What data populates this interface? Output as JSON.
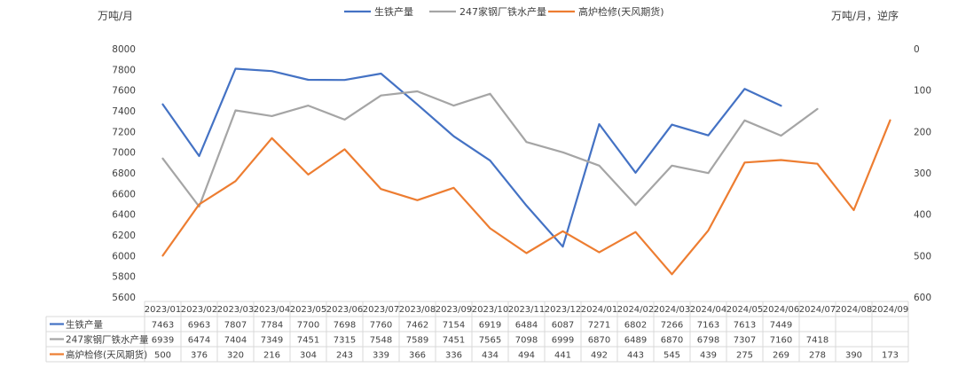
{
  "chart_data": {
    "type": "line",
    "left_axis_unit": "万吨/月",
    "right_axis_unit": "万吨/月，逆序",
    "left_ylim": [
      5600,
      8000
    ],
    "left_ticks": [
      5600,
      5800,
      6000,
      6200,
      6400,
      6600,
      6800,
      7000,
      7200,
      7400,
      7600,
      7800,
      8000
    ],
    "right_ylim": [
      0,
      600
    ],
    "right_reversed": true,
    "right_ticks": [
      0,
      100,
      200,
      300,
      400,
      500,
      600
    ],
    "grid": false,
    "legend_position": "top",
    "categories": [
      "2023/01",
      "2023/02",
      "2023/03",
      "2023/04",
      "2023/05",
      "2023/06",
      "2023/07",
      "2023/08",
      "2023/09",
      "2023/10",
      "2023/11",
      "2023/12",
      "2024/01",
      "2024/02",
      "2024/03",
      "2024/04",
      "2024/05",
      "2024/06",
      "2024/07",
      "2024/08",
      "2024/09"
    ],
    "series": [
      {
        "name": "生铁产量",
        "axis": "left",
        "color": "#4472C4",
        "values": [
          7463,
          6963,
          7807,
          7784,
          7700,
          7698,
          7760,
          7462,
          7154,
          6919,
          6484,
          6087,
          7271,
          6802,
          7266,
          7163,
          7613,
          7449,
          null,
          null,
          null
        ]
      },
      {
        "name": "247家钢厂铁水产量",
        "axis": "left",
        "color": "#A5A5A5",
        "values": [
          6939,
          6474,
          7404,
          7349,
          7451,
          7315,
          7548,
          7589,
          7451,
          7565,
          7098,
          6999,
          6870,
          6489,
          6870,
          6798,
          7307,
          7160,
          7418,
          null,
          null
        ]
      },
      {
        "name": "高炉检修(天风期货)",
        "axis": "right",
        "color": "#ED7D31",
        "values": [
          500,
          376,
          320,
          216,
          304,
          243,
          339,
          366,
          336,
          434,
          494,
          441,
          492,
          443,
          545,
          439,
          275,
          269,
          278,
          390,
          173
        ]
      }
    ]
  }
}
